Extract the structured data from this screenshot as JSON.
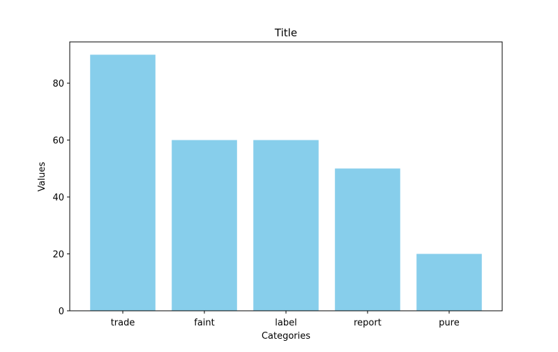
{
  "chart_data": {
    "type": "bar",
    "title": "Title",
    "xlabel": "Categories",
    "ylabel": "Values",
    "categories": [
      "trade",
      "faint",
      "label",
      "report",
      "pure"
    ],
    "values": [
      90,
      60,
      60,
      50,
      20
    ],
    "ylim": [
      0,
      94.5
    ],
    "yticks": [
      0,
      20,
      40,
      60,
      80
    ],
    "grid": false,
    "bar_color": "#87CEEB",
    "axis_color": "#000000"
  }
}
